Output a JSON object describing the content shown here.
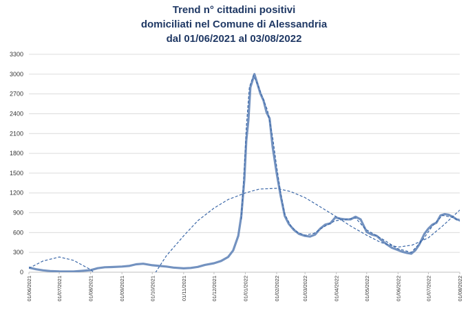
{
  "chart_data": {
    "type": "line",
    "title": [
      "Trend n° cittadini positivi",
      "domiciliati nel Comune di Alessandria",
      "dal 01/06/2021 al 03/08/2022"
    ],
    "xlabel": "",
    "ylabel": "",
    "ylim": [
      0,
      3300
    ],
    "yticks": [
      0,
      300,
      600,
      900,
      1200,
      1500,
      1800,
      2100,
      2400,
      2700,
      3000,
      3300
    ],
    "xticks": [
      "01/06/2021",
      "01/07/2021",
      "01/08/2021",
      "01/09/2021",
      "01/10/2021",
      "01/11/2021",
      "01/12/2021",
      "01/01/2022",
      "01/02/2022",
      "01/03/2022",
      "01/04/2022",
      "01/05/2022",
      "01/06/2022",
      "01/07/2022",
      "01/08/2022"
    ],
    "grid": "horizontal",
    "colors": {
      "series": "#5b7fb5",
      "trend": "#3a67a8",
      "title": "#1f3864"
    },
    "series": [
      {
        "style": "solid",
        "points": [
          [
            "01/06/2021",
            70
          ],
          [
            "08/06/2021",
            45
          ],
          [
            "15/06/2021",
            28
          ],
          [
            "22/06/2021",
            18
          ],
          [
            "01/07/2021",
            12
          ],
          [
            "15/07/2021",
            10
          ],
          [
            "01/08/2021",
            30
          ],
          [
            "08/08/2021",
            60
          ],
          [
            "15/08/2021",
            75
          ],
          [
            "22/08/2021",
            78
          ],
          [
            "01/09/2021",
            85
          ],
          [
            "08/09/2021",
            95
          ],
          [
            "15/09/2021",
            120
          ],
          [
            "22/09/2021",
            128
          ],
          [
            "01/10/2021",
            105
          ],
          [
            "08/10/2021",
            95
          ],
          [
            "15/10/2021",
            85
          ],
          [
            "22/10/2021",
            70
          ],
          [
            "01/11/2021",
            58
          ],
          [
            "08/11/2021",
            65
          ],
          [
            "15/11/2021",
            80
          ],
          [
            "22/11/2021",
            110
          ],
          [
            "01/12/2021",
            135
          ],
          [
            "08/12/2021",
            170
          ],
          [
            "15/12/2021",
            230
          ],
          [
            "20/12/2021",
            330
          ],
          [
            "25/12/2021",
            550
          ],
          [
            "28/12/2021",
            850
          ],
          [
            "31/12/2021",
            1400
          ],
          [
            "02/01/2022",
            2000
          ],
          [
            "04/01/2022",
            2300
          ],
          [
            "06/01/2022",
            2800
          ],
          [
            "08/01/2022",
            2900
          ],
          [
            "10/01/2022",
            3000
          ],
          [
            "13/01/2022",
            2850
          ],
          [
            "16/01/2022",
            2700
          ],
          [
            "19/01/2022",
            2600
          ],
          [
            "22/01/2022",
            2420
          ],
          [
            "25/01/2022",
            2330
          ],
          [
            "28/01/2022",
            1900
          ],
          [
            "01/02/2022",
            1500
          ],
          [
            "05/02/2022",
            1150
          ],
          [
            "09/02/2022",
            850
          ],
          [
            "13/02/2022",
            730
          ],
          [
            "18/02/2022",
            640
          ],
          [
            "23/02/2022",
            580
          ],
          [
            "01/03/2022",
            550
          ],
          [
            "06/03/2022",
            540
          ],
          [
            "11/03/2022",
            570
          ],
          [
            "16/03/2022",
            660
          ],
          [
            "21/03/2022",
            720
          ],
          [
            "26/03/2022",
            740
          ],
          [
            "31/03/2022",
            830
          ],
          [
            "05/04/2022",
            810
          ],
          [
            "10/04/2022",
            800
          ],
          [
            "15/04/2022",
            800
          ],
          [
            "20/04/2022",
            840
          ],
          [
            "25/04/2022",
            800
          ],
          [
            "01/05/2022",
            610
          ],
          [
            "06/05/2022",
            570
          ],
          [
            "11/05/2022",
            550
          ],
          [
            "16/05/2022",
            480
          ],
          [
            "21/05/2022",
            420
          ],
          [
            "26/05/2022",
            370
          ],
          [
            "31/05/2022",
            340
          ],
          [
            "05/06/2022",
            310
          ],
          [
            "10/06/2022",
            290
          ],
          [
            "14/06/2022",
            280
          ],
          [
            "18/06/2022",
            330
          ],
          [
            "22/06/2022",
            420
          ],
          [
            "27/06/2022",
            580
          ],
          [
            "01/07/2022",
            660
          ],
          [
            "05/07/2022",
            720
          ],
          [
            "09/07/2022",
            750
          ],
          [
            "13/07/2022",
            860
          ],
          [
            "17/07/2022",
            880
          ],
          [
            "21/07/2022",
            870
          ],
          [
            "25/07/2022",
            840
          ],
          [
            "29/07/2022",
            800
          ],
          [
            "01/08/2022",
            790
          ],
          [
            "03/08/2022",
            750
          ]
        ]
      },
      {
        "style": "dashed",
        "points": [
          [
            "01/06/2021",
            60
          ],
          [
            "15/06/2021",
            170
          ],
          [
            "01/07/2021",
            230
          ],
          [
            "15/07/2021",
            180
          ],
          [
            "01/08/2021",
            40
          ],
          [
            "15/08/2021",
            -150
          ],
          [
            "01/09/2021",
            -280
          ],
          [
            "15/09/2021",
            -320
          ],
          [
            "01/10/2021",
            -80
          ],
          [
            "15/10/2021",
            250
          ],
          [
            "01/11/2021",
            550
          ],
          [
            "15/11/2021",
            780
          ],
          [
            "01/12/2021",
            970
          ],
          [
            "15/12/2021",
            1100
          ],
          [
            "01/01/2022",
            1200
          ],
          [
            "15/01/2022",
            1260
          ],
          [
            "01/02/2022",
            1270
          ],
          [
            "15/02/2022",
            1220
          ],
          [
            "01/03/2022",
            1130
          ],
          [
            "15/03/2022",
            1000
          ],
          [
            "01/04/2022",
            840
          ],
          [
            "15/04/2022",
            700
          ],
          [
            "01/05/2022",
            560
          ],
          [
            "15/05/2022",
            450
          ],
          [
            "01/06/2022",
            380
          ],
          [
            "15/06/2022",
            410
          ],
          [
            "01/07/2022",
            520
          ],
          [
            "15/07/2022",
            700
          ],
          [
            "01/08/2022",
            940
          ],
          [
            "03/08/2022",
            960
          ]
        ]
      },
      {
        "style": "dashed",
        "points": [
          [
            "28/12/2021",
            800
          ],
          [
            "31/12/2021",
            1600
          ],
          [
            "02/01/2022",
            2200
          ],
          [
            "05/01/2022",
            2800
          ],
          [
            "09/01/2022",
            2980
          ],
          [
            "13/01/2022",
            2850
          ],
          [
            "18/01/2022",
            2650
          ],
          [
            "23/01/2022",
            2450
          ],
          [
            "28/01/2022",
            2050
          ],
          [
            "01/02/2022",
            1600
          ],
          [
            "05/02/2022",
            1200
          ],
          [
            "09/02/2022",
            880
          ],
          [
            "15/02/2022",
            700
          ],
          [
            "22/02/2022",
            600
          ],
          [
            "01/03/2022",
            560
          ],
          [
            "10/03/2022",
            590
          ],
          [
            "20/03/2022",
            690
          ],
          [
            "31/03/2022",
            780
          ],
          [
            "10/04/2022",
            800
          ],
          [
            "20/04/2022",
            820
          ],
          [
            "30/04/2022",
            650
          ],
          [
            "10/05/2022",
            560
          ],
          [
            "20/05/2022",
            470
          ],
          [
            "31/05/2022",
            360
          ],
          [
            "14/06/2022",
            300
          ],
          [
            "25/06/2022",
            480
          ],
          [
            "05/07/2022",
            700
          ],
          [
            "15/07/2022",
            860
          ],
          [
            "25/07/2022",
            830
          ],
          [
            "03/08/2022",
            760
          ]
        ]
      }
    ]
  }
}
